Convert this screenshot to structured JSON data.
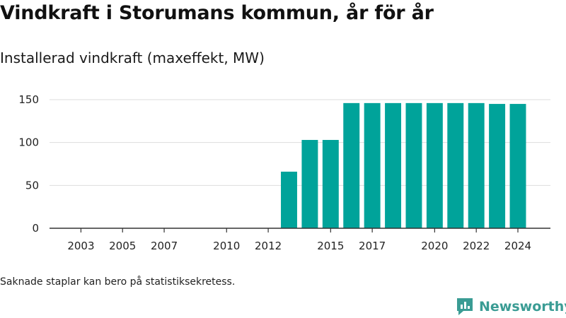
{
  "title": "Vindkraft i Storumans kommun, år för år",
  "subtitle": "Installerad vindkraft (maxeffekt, MW)",
  "footnote": "Saknade staplar kan bero på statistiksekretess.",
  "brand": {
    "name": "Newsworthy",
    "icon": "newsworthy-logo-icon",
    "color": "#3a9c94"
  },
  "colors": {
    "bar": "#00a39a",
    "grid": "#dddddd",
    "axis": "#333333"
  },
  "chart_data": {
    "type": "bar",
    "x": [
      2002,
      2003,
      2004,
      2005,
      2006,
      2007,
      2008,
      2009,
      2010,
      2011,
      2012,
      2013,
      2014,
      2015,
      2016,
      2017,
      2018,
      2019,
      2020,
      2021,
      2022,
      2023,
      2024
    ],
    "values": [
      null,
      null,
      null,
      null,
      null,
      null,
      null,
      null,
      null,
      null,
      null,
      66,
      103,
      103,
      146,
      146,
      146,
      146,
      146,
      146,
      146,
      145,
      145
    ],
    "xticks": [
      2003,
      2005,
      2007,
      2010,
      2012,
      2015,
      2017,
      2020,
      2022,
      2024
    ],
    "yticks": [
      0,
      50,
      100,
      150
    ],
    "ylim": [
      0,
      160
    ],
    "xlabel": "",
    "ylabel": "",
    "grid": true
  }
}
